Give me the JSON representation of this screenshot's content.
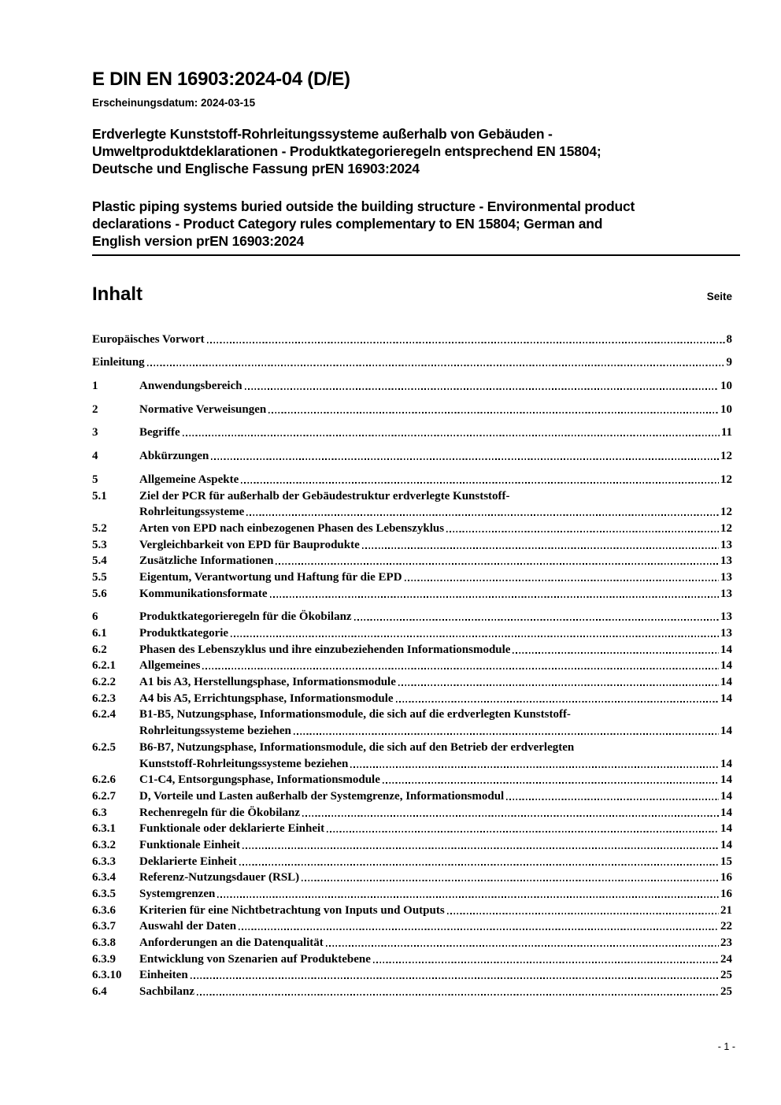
{
  "header": {
    "doc_number": "E DIN EN 16903:2024-04 (D/E)",
    "publication": "Erscheinungsdatum: 2024-03-15",
    "title_de_lines": [
      "Erdverlegte Kunststoff-Rohrleitungssysteme außerhalb von Gebäuden -",
      "Umweltproduktdeklarationen - Produktkategorieregeln entsprechend EN 15804;",
      "Deutsche und Englische Fassung prEN 16903:2024"
    ],
    "title_en_lines": [
      "Plastic piping systems buried outside the building structure - Environmental product",
      "declarations - Product Category rules complementary to EN 15804; German and",
      "English version prEN 16903:2024"
    ]
  },
  "toc": {
    "heading": "Inhalt",
    "page_label": "Seite",
    "entries": [
      {
        "num": "",
        "lines": [
          "Europäisches Vorwort"
        ],
        "page": "8",
        "top": true
      },
      {
        "num": "",
        "lines": [
          "Einleitung"
        ],
        "page": "9",
        "top": true
      },
      {
        "num": "1",
        "lines": [
          "Anwendungsbereich"
        ],
        "page": "10",
        "top": true
      },
      {
        "num": "2",
        "lines": [
          "Normative Verweisungen"
        ],
        "page": "10",
        "top": true
      },
      {
        "num": "3",
        "lines": [
          "Begriffe"
        ],
        "page": "11",
        "top": true
      },
      {
        "num": "4",
        "lines": [
          "Abkürzungen"
        ],
        "page": "12",
        "top": true
      },
      {
        "num": "5",
        "lines": [
          "Allgemeine Aspekte"
        ],
        "page": "12",
        "top": true
      },
      {
        "num": "5.1",
        "lines": [
          "Ziel der PCR für außerhalb der Gebäudestruktur erdverlegte Kunststoff-",
          "Rohrleitungssysteme"
        ],
        "page": "12"
      },
      {
        "num": "5.2",
        "lines": [
          "Arten von EPD nach einbezogenen Phasen des Lebenszyklus"
        ],
        "page": "12"
      },
      {
        "num": "5.3",
        "lines": [
          "Vergleichbarkeit von EPD für Bauprodukte"
        ],
        "page": "13"
      },
      {
        "num": "5.4",
        "lines": [
          "Zusätzliche Informationen"
        ],
        "page": "13"
      },
      {
        "num": "5.5",
        "lines": [
          "Eigentum, Verantwortung und Haftung für die EPD"
        ],
        "page": "13"
      },
      {
        "num": "5.6",
        "lines": [
          "Kommunikationsformate"
        ],
        "page": "13"
      },
      {
        "num": "6",
        "lines": [
          "Produktkategorieregeln für die Ökobilanz"
        ],
        "page": "13",
        "top": true
      },
      {
        "num": "6.1",
        "lines": [
          "Produktkategorie"
        ],
        "page": "13"
      },
      {
        "num": "6.2",
        "lines": [
          "Phasen des Lebenszyklus und ihre einzubeziehenden Informationsmodule"
        ],
        "page": "14"
      },
      {
        "num": "6.2.1",
        "lines": [
          "Allgemeines"
        ],
        "page": "14"
      },
      {
        "num": "6.2.2",
        "lines": [
          "A1 bis A3, Herstellungsphase, Informationsmodule"
        ],
        "page": "14"
      },
      {
        "num": "6.2.3",
        "lines": [
          "A4 bis A5, Errichtungsphase, Informationsmodule"
        ],
        "page": "14"
      },
      {
        "num": "6.2.4",
        "lines": [
          "B1-B5, Nutzungsphase, Informationsmodule, die sich auf die erdverlegten Kunststoff-",
          "Rohrleitungssysteme beziehen"
        ],
        "page": "14"
      },
      {
        "num": "6.2.5",
        "lines": [
          "B6-B7, Nutzungsphase, Informationsmodule, die sich auf den Betrieb der erdverlegten",
          "Kunststoff-Rohrleitungssysteme beziehen"
        ],
        "page": "14"
      },
      {
        "num": "6.2.6",
        "lines": [
          "C1-C4, Entsorgungsphase, Informationsmodule"
        ],
        "page": "14"
      },
      {
        "num": "6.2.7",
        "lines": [
          "D, Vorteile und Lasten außerhalb der Systemgrenze, Informationsmodul"
        ],
        "page": "14"
      },
      {
        "num": "6.3",
        "lines": [
          "Rechenregeln für die Ökobilanz"
        ],
        "page": "14"
      },
      {
        "num": "6.3.1",
        "lines": [
          "Funktionale oder deklarierte Einheit"
        ],
        "page": "14"
      },
      {
        "num": "6.3.2",
        "lines": [
          "Funktionale Einheit"
        ],
        "page": "14"
      },
      {
        "num": "6.3.3",
        "lines": [
          "Deklarierte Einheit"
        ],
        "page": "15"
      },
      {
        "num": "6.3.4",
        "lines": [
          "Referenz-Nutzungsdauer (RSL)"
        ],
        "page": "16"
      },
      {
        "num": "6.3.5",
        "lines": [
          "Systemgrenzen"
        ],
        "page": "16"
      },
      {
        "num": "6.3.6",
        "lines": [
          "Kriterien für eine Nichtbetrachtung von Inputs und Outputs"
        ],
        "page": "21"
      },
      {
        "num": "6.3.7",
        "lines": [
          "Auswahl der Daten"
        ],
        "page": "22"
      },
      {
        "num": "6.3.8",
        "lines": [
          "Anforderungen an die Datenqualität"
        ],
        "page": "23"
      },
      {
        "num": "6.3.9",
        "lines": [
          "Entwicklung von Szenarien auf Produktebene"
        ],
        "page": "24"
      },
      {
        "num": "6.3.10",
        "lines": [
          "Einheiten"
        ],
        "page": "25"
      },
      {
        "num": "6.4",
        "lines": [
          "Sachbilanz"
        ],
        "page": "25"
      }
    ]
  },
  "footer": {
    "page_number": "- 1 -"
  }
}
